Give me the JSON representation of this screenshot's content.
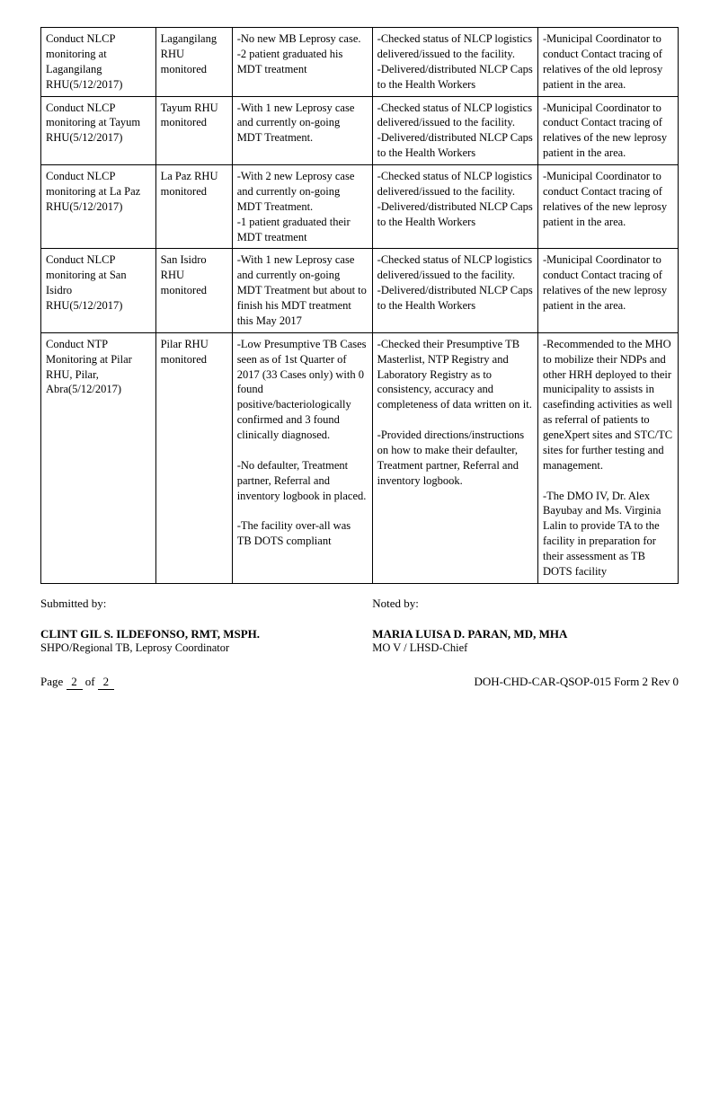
{
  "rows": [
    {
      "activity": "Conduct NLCP monitoring at Lagangilang RHU(5/12/2017)",
      "output": "Lagangilang RHU monitored",
      "findings": "-No new MB Leprosy case.\n-2 patient graduated his MDT treatment",
      "actions": "-Checked status of NLCP logistics delivered/issued to the facility.\n-Delivered/distributed NLCP Caps to the Health Workers",
      "recommendations": "-Municipal Coordinator to conduct Contact tracing of relatives of the old leprosy patient in the area."
    },
    {
      "activity": "Conduct NLCP monitoring at Tayum RHU(5/12/2017)",
      "output": "Tayum RHU monitored",
      "findings": "-With 1 new Leprosy case and currently on-going MDT Treatment.",
      "actions": "-Checked status of NLCP logistics delivered/issued to the facility.\n-Delivered/distributed NLCP Caps to the Health Workers",
      "recommendations": "-Municipal Coordinator to conduct Contact tracing of relatives of the new leprosy patient in the area."
    },
    {
      "activity": "Conduct NLCP monitoring at La Paz RHU(5/12/2017)",
      "output": "La Paz RHU monitored",
      "findings": "-With 2 new Leprosy case and currently on-going MDT Treatment.\n-1 patient graduated their MDT treatment",
      "actions": "-Checked status of NLCP logistics delivered/issued to the facility.\n-Delivered/distributed NLCP Caps to the Health Workers",
      "recommendations": "-Municipal Coordinator to conduct Contact tracing of relatives of the new leprosy patient in the area."
    },
    {
      "activity": "Conduct NLCP monitoring at San Isidro RHU(5/12/2017)",
      "output": "San Isidro RHU monitored",
      "findings": "-With 1 new Leprosy case and currently on-going MDT Treatment but about to finish his MDT treatment this May 2017",
      "actions": "-Checked status of NLCP logistics delivered/issued to the facility.\n-Delivered/distributed NLCP Caps to the Health Workers",
      "recommendations": "-Municipal Coordinator to conduct Contact tracing of relatives of the new leprosy patient in the area."
    },
    {
      "activity": "Conduct NTP Monitoring at Pilar RHU, Pilar, Abra(5/12/2017)",
      "output": "Pilar RHU monitored",
      "findings": "-Low Presumptive TB Cases seen as of 1st Quarter of 2017 (33 Cases only) with 0 found positive/bacteriologically confirmed and 3 found clinically diagnosed.\n\n-No defaulter, Treatment partner, Referral and inventory logbook in placed.\n\n-The facility over-all was TB DOTS compliant",
      "actions": "-Checked their Presumptive TB Masterlist, NTP Registry and Laboratory Registry as to consistency, accuracy and completeness of data written on it.\n\n-Provided directions/instructions on how to make their defaulter, Treatment partner, Referral and inventory logbook.",
      "recommendations": "-Recommended to the MHO to mobilize their NDPs and other HRH deployed to their municipality to assists in casefinding activities as well as referral of patients to geneXpert sites and STC/TC sites for further testing and management.\n\n-The DMO IV, Dr. Alex Bayubay and Ms. Virginia Lalin to provide TA to the facility in preparation for their assessment as TB DOTS facility"
    }
  ],
  "footer": {
    "submitted_label": "Submitted by:",
    "submitted_name": "CLINT GIL S. ILDEFONSO, RMT, MSPH.",
    "submitted_title": "SHPO/Regional TB, Leprosy Coordinator",
    "noted_label": "Noted by:",
    "noted_name": "MARIA LUISA D. PARAN, MD, MHA",
    "noted_title": "MO V / LHSD-Chief",
    "page_label": "Page",
    "page_current": "2",
    "page_of": "of",
    "page_total": "2",
    "form_code": "DOH-CHD-CAR-QSOP-015 Form 2 Rev 0"
  }
}
